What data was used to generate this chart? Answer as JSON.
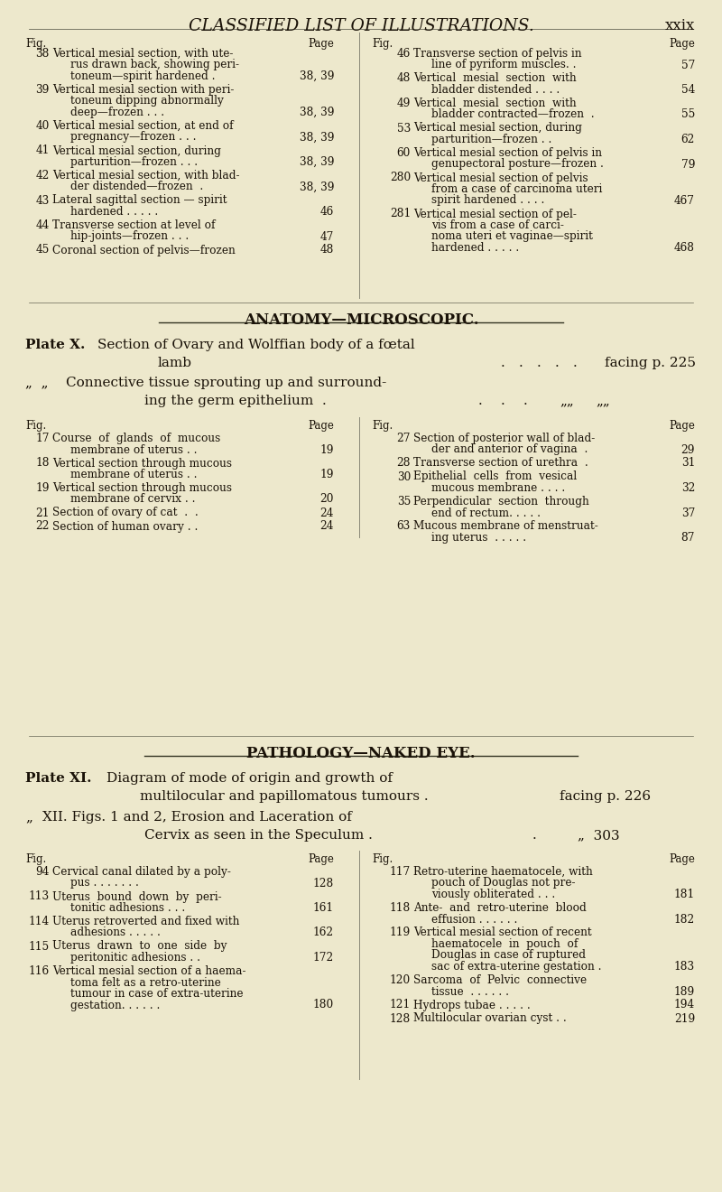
{
  "bg_color": "#ede8cc",
  "title": "CLASSIFIED LIST OF ILLUSTRATIONS.",
  "page_num": "xxix",
  "section_headers": [
    "ANATOMY—MICROSCOPIC.",
    "PATHOLOGY—NAKED EYE."
  ],
  "col1_left": [
    {
      "num": "Fig.",
      "desc": "",
      "page": "Page",
      "header": true
    },
    {
      "num": "38",
      "desc": "Vertical mesial section, with ute-\nrus drawn back, showing peri-\ntoneum—spirit hardened .",
      "page": "38, 39"
    },
    {
      "num": "39",
      "desc": "Vertical mesial section with peri-\ntoneum dipping abnormally\ndeep—frozen . . .",
      "page": "38, 39"
    },
    {
      "num": "40",
      "desc": "Vertical mesial section, at end of\npregnancy—frozen . . .",
      "page": "38, 39"
    },
    {
      "num": "41",
      "desc": "Vertical mesial section, during\nparturition—frozen . . .",
      "page": "38, 39"
    },
    {
      "num": "42",
      "desc": "Vertical mesial section, with blad-\nder distended—frozen  .",
      "page": "38, 39"
    },
    {
      "num": "43",
      "desc": "Lateral sagittal section — spirit\nhardened . . . . .",
      "page": "46"
    },
    {
      "num": "44",
      "desc": "Transverse section at level of\nhip-joints—frozen . . .",
      "page": "47"
    },
    {
      "num": "45",
      "desc": "Coronal section of pelvis—frozen",
      "page": "48"
    }
  ],
  "col1_right": [
    {
      "num": "Fig.",
      "desc": "",
      "page": "Page",
      "header": true
    },
    {
      "num": "46",
      "desc": "Transverse section of pelvis in\nline of pyriform muscles. .",
      "page": "57"
    },
    {
      "num": "48",
      "desc": "Vertical  mesial  section  with\nbladder distended . . . .",
      "page": "54"
    },
    {
      "num": "49",
      "desc": "Vertical  mesial  section  with\nbladder contracted—frozen  .",
      "page": "55"
    },
    {
      "num": "53",
      "desc": "Vertical mesial section, during\nparturition—frozen . .",
      "page": "62"
    },
    {
      "num": "60",
      "desc": "Vertical mesial section of pelvis in\ngenupectoral posture—frozen .",
      "page": "79"
    },
    {
      "num": "280",
      "desc": "Vertical mesial section of pelvis\nfrom a case of carcinoma uteri\nspirit hardened . . . .",
      "page": "467"
    },
    {
      "num": "281",
      "desc": "Vertical mesial section of pel-\nvis from a case of carci-\nnoma uteri et vaginae—spirit\nhardened . . . . .",
      "page": "468"
    }
  ],
  "plate_x_line1": "Plate X.",
  "plate_x_rest1": "Section of Ovary and Wolffian body of a fœtal",
  "plate_x_line2": "lamb",
  "plate_x_facing": "facing p. 225",
  "plate_x_line3a": "„  „",
  "plate_x_rest3": "Connective tissue sprouting up and surround-",
  "plate_x_line4": "ing the germ epithelium  .",
  "plate_x_line4end": "„„",
  "col2_left": [
    {
      "num": "Fig.",
      "desc": "",
      "page": "Page",
      "header": true
    },
    {
      "num": "17",
      "desc": "Course  of  glands  of  mucous\nmembrane of uterus . .",
      "page": "19"
    },
    {
      "num": "18",
      "desc": "Vertical section through mucous\nmembrane of uterus . .",
      "page": "19"
    },
    {
      "num": "19",
      "desc": "Vertical section through mucous\nmembrane of cervix . .",
      "page": "20"
    },
    {
      "num": "21",
      "desc": "Section of ovary of cat  .  .",
      "page": "24"
    },
    {
      "num": "22",
      "desc": "Section of human ovary . .",
      "page": "24"
    }
  ],
  "col2_right": [
    {
      "num": "Fig.",
      "desc": "",
      "page": "Page",
      "header": true
    },
    {
      "num": "27",
      "desc": "Section of posterior wall of blad-\nder and anterior of vagina  .",
      "page": "29"
    },
    {
      "num": "28",
      "desc": "Transverse section of urethra  .",
      "page": "31"
    },
    {
      "num": "30",
      "desc": "Epithelial  cells  from  vesical\nmucous membrane . . . .",
      "page": "32"
    },
    {
      "num": "35",
      "desc": "Perpendicular  section  through\nend of rectum. . . . .",
      "page": "37"
    },
    {
      "num": "63",
      "desc": "Mucous membrane of menstruat-\ning uterus  . . . . .",
      "page": "87"
    }
  ],
  "plate_xi_line1": "Plate XI.",
  "plate_xi_rest1": "Diagram of mode of origin and growth of",
  "plate_xi_line2": "multilocular and papillomatous tumours .",
  "plate_xi_facing": "facing p. 226",
  "plate_xi_line3a": "„",
  "plate_xi_rest3": "XII. Figs. 1 and 2, Erosion and Laceration of",
  "plate_xi_line4": "Cervix as seen in the Speculum .",
  "plate_xi_line4page": "„  303",
  "col3_left": [
    {
      "num": "Fig.",
      "desc": "",
      "page": "Page",
      "header": true
    },
    {
      "num": "94",
      "desc": "Cervical canal dilated by a poly-\npus . . . . . . .",
      "page": "128"
    },
    {
      "num": "113",
      "desc": "Uterus  bound  down  by  peri-\ntonitic adhesions . . .",
      "page": "161"
    },
    {
      "num": "114",
      "desc": "Uterus retroverted and fixed with\nadhesions . . . . .",
      "page": "162"
    },
    {
      "num": "115",
      "desc": "Uterus  drawn  to  one  side  by\nperitonitic adhesions . .",
      "page": "172"
    },
    {
      "num": "116",
      "desc": "Vertical mesial section of a haema-\ntoma felt as a retro-uterine\ntumour in case of extra-uterine\ngestation. . . . . .",
      "page": "180"
    }
  ],
  "col3_right": [
    {
      "num": "Fig.",
      "desc": "",
      "page": "Page",
      "header": true
    },
    {
      "num": "117",
      "desc": "Retro-uterine haematocele, with\npouch of Douglas not pre-\nviously obliterated . . .",
      "page": "181"
    },
    {
      "num": "118",
      "desc": "Ante-  and  retro-uterine  blood\neffusion . . . . . .",
      "page": "182"
    },
    {
      "num": "119",
      "desc": "Vertical mesial section of recent\nhaematocele  in  pouch  of\nDouglas in case of ruptured\nsac of extra-uterine gestation .",
      "page": "183"
    },
    {
      "num": "120",
      "desc": "Sarcoma  of  Pelvic  connective\ntissue  . . . . . .",
      "page": "189"
    },
    {
      "num": "121",
      "desc": "Hydrops tubae . . . . .",
      "page": "194"
    },
    {
      "num": "128",
      "desc": "Multilocular ovarian cyst . .",
      "page": "219"
    }
  ]
}
